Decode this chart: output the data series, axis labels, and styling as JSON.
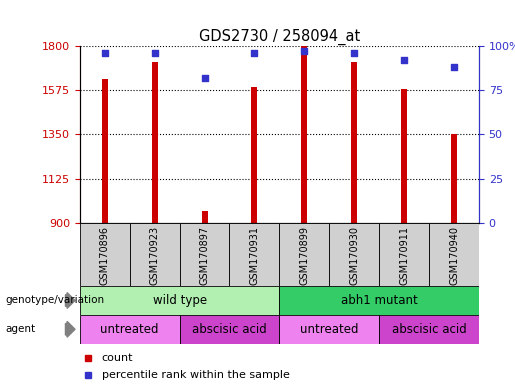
{
  "title": "GDS2730 / 258094_at",
  "samples": [
    "GSM170896",
    "GSM170923",
    "GSM170897",
    "GSM170931",
    "GSM170899",
    "GSM170930",
    "GSM170911",
    "GSM170940"
  ],
  "counts": [
    1630,
    1720,
    960,
    1590,
    1800,
    1720,
    1580,
    1350
  ],
  "percentile_ranks": [
    96,
    96,
    82,
    96,
    97,
    96,
    92,
    88
  ],
  "ylim_left": [
    900,
    1800
  ],
  "ylim_right": [
    0,
    100
  ],
  "yticks_left": [
    900,
    1125,
    1350,
    1575,
    1800
  ],
  "yticks_right": [
    0,
    25,
    50,
    75,
    100
  ],
  "bar_color": "#cc0000",
  "marker_color": "#3333cc",
  "genotype_groups": [
    {
      "label": "wild type",
      "start": 0,
      "end": 4,
      "color": "#b2f0b2"
    },
    {
      "label": "abh1 mutant",
      "start": 4,
      "end": 8,
      "color": "#33cc66"
    }
  ],
  "agent_groups": [
    {
      "label": "untreated",
      "start": 0,
      "end": 2,
      "color": "#ee82ee"
    },
    {
      "label": "abscisic acid",
      "start": 2,
      "end": 4,
      "color": "#cc44cc"
    },
    {
      "label": "untreated",
      "start": 4,
      "end": 6,
      "color": "#ee82ee"
    },
    {
      "label": "abscisic acid",
      "start": 6,
      "end": 8,
      "color": "#cc44cc"
    }
  ],
  "legend_items": [
    {
      "label": "count",
      "color": "#cc0000"
    },
    {
      "label": "percentile rank within the sample",
      "color": "#3333cc"
    }
  ],
  "left_axis_color": "#cc0000",
  "right_axis_color": "#3333cc",
  "bar_width": 0.12,
  "sample_box_color": "#d0d0d0"
}
